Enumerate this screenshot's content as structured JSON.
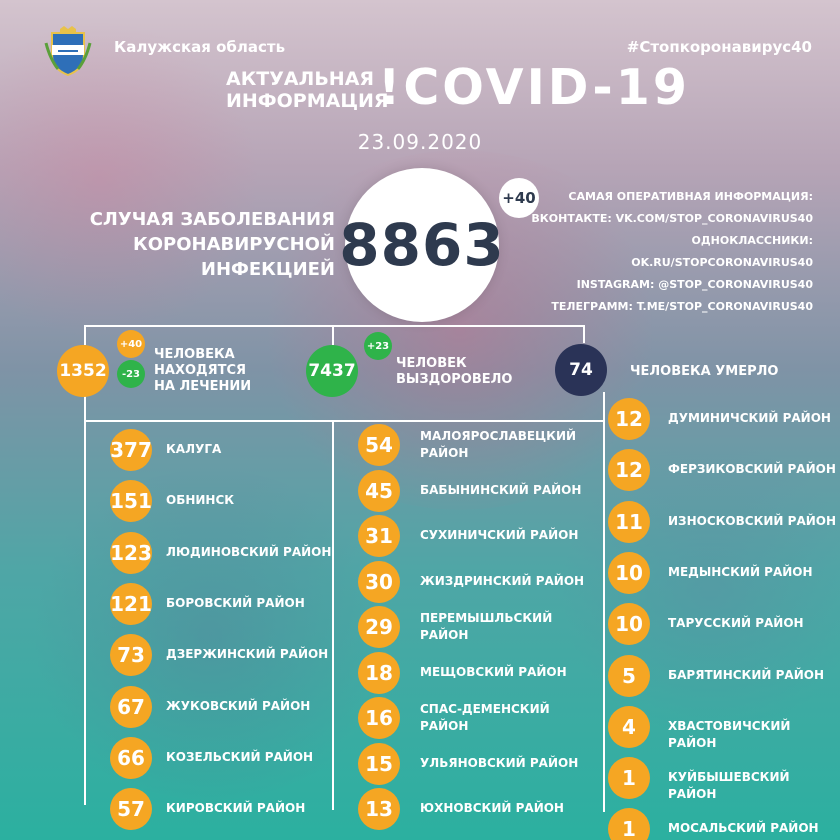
{
  "header": {
    "region": "Калужская область",
    "hashtag": "#Стопкоронавирус40",
    "title_small_1": "АКТУАЛЬНАЯ",
    "title_small_2": "ИНФОРМАЦИЯ",
    "title_big": "!COVID-19",
    "date": "23.09.2020"
  },
  "cases": {
    "label_1": "СЛУЧАЯ ЗАБОЛЕВАНИЯ",
    "label_2": "КОРОНАВИРУСНОЙ ИНФЕКЦИЕЙ",
    "total": "8863",
    "delta": "+40"
  },
  "links": {
    "heading": "САМАЯ ОПЕРАТИВНАЯ ИНФОРМАЦИЯ:",
    "vk": "ВКОНТАКТЕ: VK.COM/STOP_CORONAVIRUS40",
    "ok": "ОДНОКЛАССНИКИ: OK.RU/STOPCORONAVIRUS40",
    "instagram": "INSTAGRAM: @STOP_CORONAVIRUS40",
    "telegram": "ТЕЛЕГРАММ: T.ME/STOP_CORONAVIRUS40"
  },
  "stats": {
    "treatment": {
      "value": "1352",
      "plus": "+40",
      "minus": "-23",
      "label_1": "ЧЕЛОВЕКА",
      "label_2": "НАХОДЯТСЯ",
      "label_3": "НА ЛЕЧЕНИИ"
    },
    "recovered": {
      "value": "7437",
      "plus": "+23",
      "label_1": "ЧЕЛОВЕК",
      "label_2": "ВЫЗДОРОВЕЛО"
    },
    "died": {
      "value": "74",
      "label": "ЧЕЛОВЕКА УМЕРЛО"
    }
  },
  "districts": {
    "col1": [
      {
        "value": "377",
        "name": "КАЛУГА"
      },
      {
        "value": "151",
        "name": "ОБНИНСК"
      },
      {
        "value": "123",
        "name": "ЛЮДИНОВСКИЙ РАЙОН"
      },
      {
        "value": "121",
        "name": "БОРОВСКИЙ РАЙОН"
      },
      {
        "value": "73",
        "name": "ДЗЕРЖИНСКИЙ РАЙОН"
      },
      {
        "value": "67",
        "name": "ЖУКОВСКИЙ РАЙОН"
      },
      {
        "value": "66",
        "name": "КОЗЕЛЬСКИЙ РАЙОН"
      },
      {
        "value": "57",
        "name": "КИРОВСКИЙ РАЙОН"
      }
    ],
    "col2": [
      {
        "value": "54",
        "name": "МАЛОЯРОСЛАВЕЦКИЙ",
        "name2": "РАЙОН"
      },
      {
        "value": "45",
        "name": "БАБЫНИНСКИЙ РАЙОН"
      },
      {
        "value": "31",
        "name": "СУХИНИЧСКИЙ РАЙОН"
      },
      {
        "value": "30",
        "name": "ЖИЗДРИНСКИЙ РАЙОН"
      },
      {
        "value": "29",
        "name": "ПЕРЕМЫШЛЬСКИЙ",
        "name2": "РАЙОН"
      },
      {
        "value": "18",
        "name": "МЕЩОВСКИЙ РАЙОН"
      },
      {
        "value": "16",
        "name": "СПАС-ДЕМЕНСКИЙ",
        "name2": "РАЙОН"
      },
      {
        "value": "15",
        "name": "УЛЬЯНОВСКИЙ РАЙОН"
      },
      {
        "value": "13",
        "name": "ЮХНОВСКИЙ РАЙОН"
      }
    ],
    "col3": [
      {
        "value": "12",
        "name": "ДУМИНИЧСКИЙ РАЙОН"
      },
      {
        "value": "12",
        "name": "ФЕРЗИКОВСКИЙ РАЙОН"
      },
      {
        "value": "11",
        "name": "ИЗНОСКОВСКИЙ РАЙОН"
      },
      {
        "value": "10",
        "name": "МЕДЫНСКИЙ РАЙОН"
      },
      {
        "value": "10",
        "name": "ТАРУССКИЙ РАЙОН"
      },
      {
        "value": "5",
        "name": "БАРЯТИНСКИЙ РАЙОН"
      },
      {
        "value": "4",
        "name": "ХВАСТОВИЧСКИЙ РАЙОН"
      },
      {
        "value": "1",
        "name": "КУЙБЫШЕВСКИЙ РАЙОН"
      },
      {
        "value": "1",
        "name": "МОСАЛЬСКИЙ РАЙОН"
      }
    ]
  },
  "colors": {
    "accent_orange": "#f5a623",
    "accent_green": "#2fb34a",
    "accent_navy": "#2a3357",
    "number_dark": "#2e3a4e"
  }
}
